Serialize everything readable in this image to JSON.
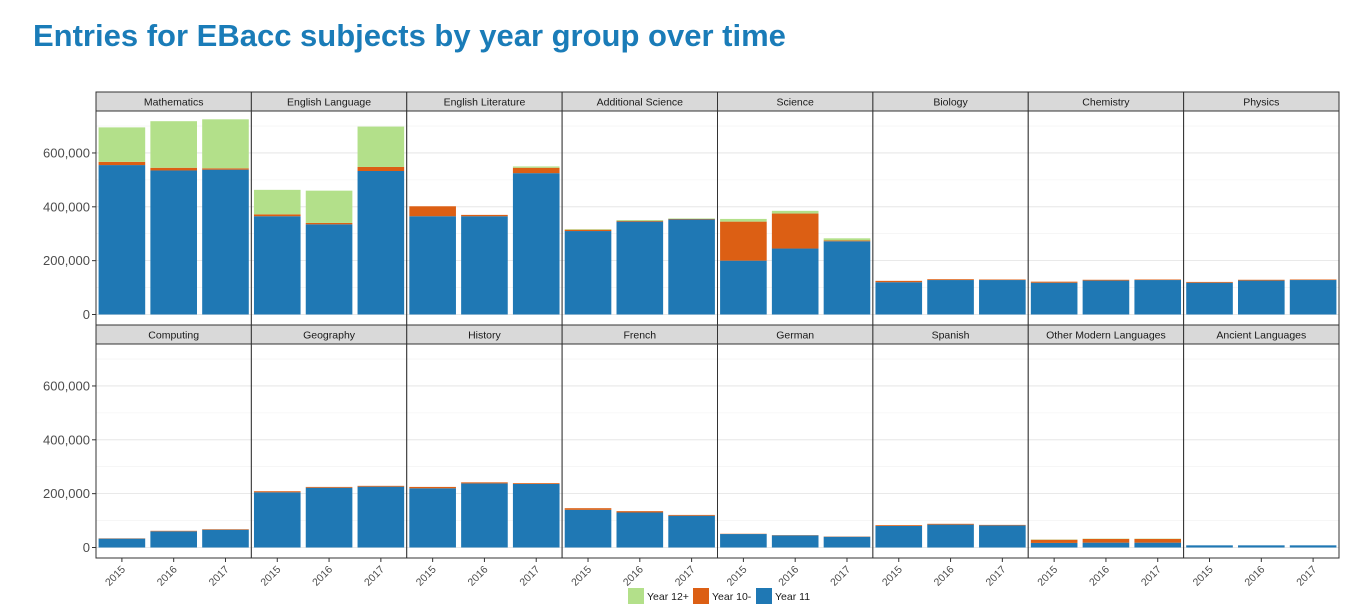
{
  "title": "Entries for EBacc subjects by year group over time",
  "colors": {
    "Year 12+": "#b3e08a",
    "Year 10-": "#dc5f14",
    "Year 11": "#1f78b4"
  },
  "chart_data": {
    "type": "bar",
    "stacked": true,
    "title": "Entries for EBacc subjects by year group over time",
    "xlabel": "",
    "ylabel": "",
    "categories": [
      "2015",
      "2016",
      "2017"
    ],
    "ylim": [
      0,
      750000
    ],
    "yticks": [
      0,
      200000,
      400000,
      600000
    ],
    "ytick_labels": [
      "0",
      "200,000",
      "400,000",
      "600,000"
    ],
    "grid": true,
    "legend": {
      "position": "bottom",
      "entries": [
        "Year 12+",
        "Year 10-",
        "Year 11"
      ]
    },
    "stack_order": [
      "Year 11",
      "Year 10-",
      "Year 12+"
    ],
    "facets": [
      {
        "name": "Mathematics",
        "series": {
          "Year 11": [
            555000,
            535000,
            538000
          ],
          "Year 10-": [
            12000,
            10000,
            5000
          ],
          "Year 12+": [
            128000,
            173000,
            182000
          ]
        }
      },
      {
        "name": "English Language",
        "series": {
          "Year 11": [
            365000,
            335000,
            533000
          ],
          "Year 10-": [
            7000,
            5000,
            15000
          ],
          "Year 12+": [
            91000,
            120000,
            150000
          ]
        }
      },
      {
        "name": "English Literature",
        "series": {
          "Year 11": [
            365000,
            365000,
            525000
          ],
          "Year 10-": [
            37000,
            5000,
            20000
          ],
          "Year 12+": [
            0,
            0,
            5000
          ]
        }
      },
      {
        "name": "Additional Science",
        "series": {
          "Year 11": [
            310000,
            345000,
            353000
          ],
          "Year 10-": [
            5000,
            3000,
            2000
          ],
          "Year 12+": [
            2000,
            3000,
            2000
          ]
        }
      },
      {
        "name": "Science",
        "series": {
          "Year 11": [
            200000,
            245000,
            272000
          ],
          "Year 10-": [
            145000,
            130000,
            3000
          ],
          "Year 12+": [
            10000,
            10000,
            8000
          ]
        }
      },
      {
        "name": "Biology",
        "series": {
          "Year 11": [
            120000,
            128000,
            128000
          ],
          "Year 10-": [
            5000,
            3000,
            2000
          ],
          "Year 12+": [
            0,
            0,
            0
          ]
        }
      },
      {
        "name": "Chemistry",
        "series": {
          "Year 11": [
            118000,
            126000,
            128000
          ],
          "Year 10-": [
            4000,
            3000,
            2000
          ],
          "Year 12+": [
            0,
            0,
            0
          ]
        }
      },
      {
        "name": "Physics",
        "series": {
          "Year 11": [
            118000,
            126000,
            128000
          ],
          "Year 10-": [
            3000,
            3000,
            2000
          ],
          "Year 12+": [
            0,
            0,
            0
          ]
        }
      },
      {
        "name": "Computing",
        "series": {
          "Year 11": [
            33000,
            60000,
            66000
          ],
          "Year 10-": [
            1000,
            2000,
            2000
          ],
          "Year 12+": [
            0,
            0,
            0
          ]
        }
      },
      {
        "name": "Geography",
        "series": {
          "Year 11": [
            205000,
            222000,
            226000
          ],
          "Year 10-": [
            4000,
            3000,
            3000
          ],
          "Year 12+": [
            0,
            0,
            0
          ]
        }
      },
      {
        "name": "History",
        "series": {
          "Year 11": [
            220000,
            238000,
            236000
          ],
          "Year 10-": [
            5000,
            4000,
            3000
          ],
          "Year 12+": [
            0,
            0,
            0
          ]
        }
      },
      {
        "name": "French",
        "series": {
          "Year 11": [
            140000,
            130000,
            118000
          ],
          "Year 10-": [
            6000,
            5000,
            3000
          ],
          "Year 12+": [
            0,
            0,
            0
          ]
        }
      },
      {
        "name": "German",
        "series": {
          "Year 11": [
            50000,
            45000,
            40000
          ],
          "Year 10-": [
            1000,
            1000,
            1000
          ],
          "Year 12+": [
            0,
            0,
            0
          ]
        }
      },
      {
        "name": "Spanish",
        "series": {
          "Year 11": [
            80000,
            85000,
            82000
          ],
          "Year 10-": [
            3000,
            3000,
            2000
          ],
          "Year 12+": [
            0,
            0,
            0
          ]
        }
      },
      {
        "name": "Other Modern Languages",
        "series": {
          "Year 11": [
            17000,
            18000,
            18000
          ],
          "Year 10-": [
            12000,
            14000,
            14000
          ],
          "Year 12+": [
            1000,
            1000,
            1000
          ]
        }
      },
      {
        "name": "Ancient Languages",
        "series": {
          "Year 11": [
            8000,
            8000,
            8000
          ],
          "Year 10-": [
            0,
            0,
            0
          ],
          "Year 12+": [
            0,
            0,
            0
          ]
        }
      }
    ]
  }
}
